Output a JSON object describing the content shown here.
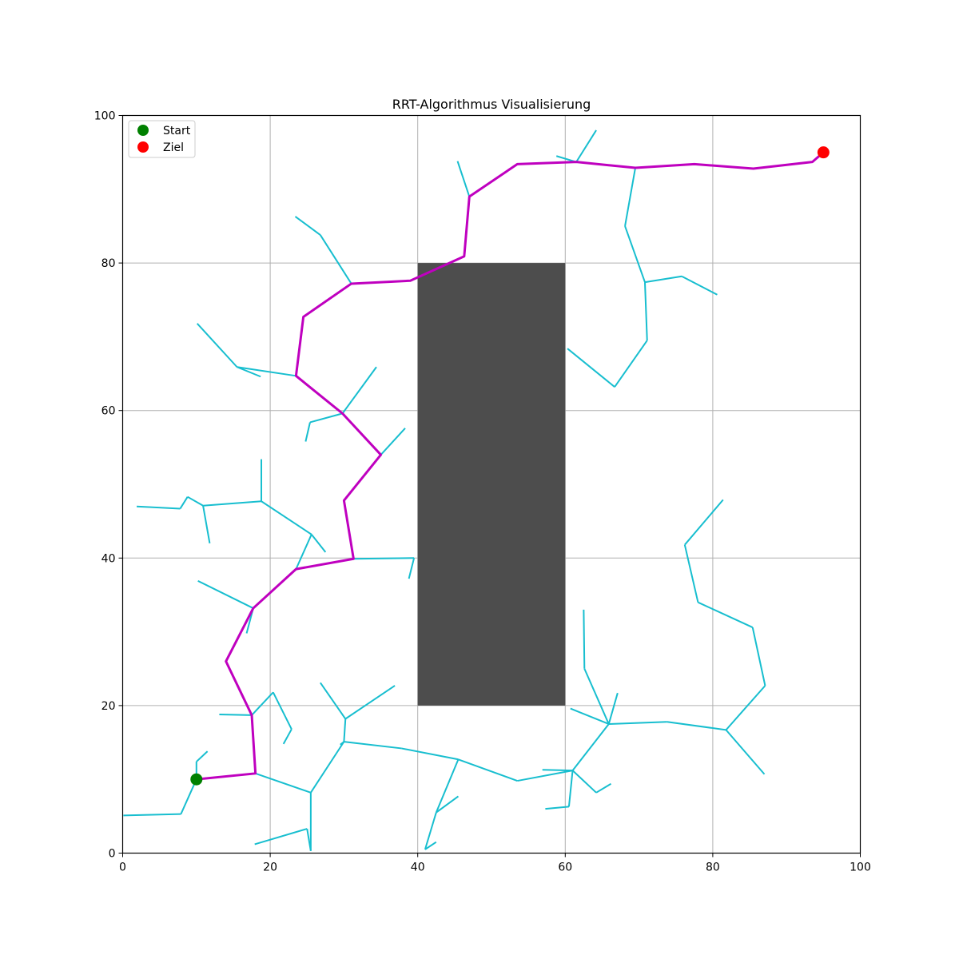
{
  "chart_data": {
    "type": "line",
    "title": "RRT-Algorithmus Visualisierung",
    "xlabel": "",
    "ylabel": "",
    "xlim": [
      0,
      100
    ],
    "ylim": [
      0,
      100
    ],
    "xticks": [
      0,
      20,
      40,
      60,
      80,
      100
    ],
    "yticks": [
      0,
      20,
      40,
      60,
      80,
      100
    ],
    "grid": true,
    "legend_position": "top-left",
    "colors": {
      "tree": "#17becf",
      "path": "#bf00bf",
      "obstacle": "#4d4d4d",
      "start": "#008000",
      "goal": "#ff0000",
      "grid": "#b0b0b0"
    },
    "obstacle": {
      "x": [
        40,
        60
      ],
      "y": [
        20,
        80
      ]
    },
    "start": {
      "name": "Start",
      "x": 10,
      "y": 10
    },
    "goal": {
      "name": "Ziel",
      "x": 95,
      "y": 95
    },
    "legend": [
      {
        "label": "Start",
        "color": "#008000"
      },
      {
        "label": "Ziel",
        "color": "#ff0000"
      }
    ],
    "path": [
      [
        10,
        10
      ],
      [
        18,
        10.8
      ],
      [
        17.5,
        18.7
      ],
      [
        14,
        26
      ],
      [
        17.7,
        33.2
      ],
      [
        23.5,
        38.5
      ],
      [
        31.3,
        39.9
      ],
      [
        30,
        47.8
      ],
      [
        35,
        54
      ],
      [
        29.8,
        59.6
      ],
      [
        23.5,
        64.7
      ],
      [
        24.5,
        72.7
      ],
      [
        31,
        77.2
      ],
      [
        39,
        77.6
      ],
      [
        46.3,
        80.9
      ],
      [
        47,
        89
      ],
      [
        53.5,
        93.4
      ],
      [
        61.5,
        93.7
      ],
      [
        69.5,
        92.9
      ],
      [
        77.5,
        93.4
      ],
      [
        85.5,
        92.8
      ],
      [
        93.5,
        93.7
      ],
      [
        95,
        95
      ]
    ],
    "tree_edges": [
      [
        [
          10,
          10
        ],
        [
          7.9,
          5.3
        ]
      ],
      [
        [
          7.9,
          5.3
        ],
        [
          0.1,
          5.1
        ]
      ],
      [
        [
          10,
          10
        ],
        [
          10,
          12.4
        ]
      ],
      [
        [
          10,
          12.4
        ],
        [
          11.5,
          13.8
        ]
      ],
      [
        [
          18,
          10.8
        ],
        [
          25.5,
          8.2
        ]
      ],
      [
        [
          25.5,
          8.2
        ],
        [
          25.5,
          0.3
        ]
      ],
      [
        [
          25.5,
          0.3
        ],
        [
          25,
          3.3
        ]
      ],
      [
        [
          25,
          3.3
        ],
        [
          17.9,
          1.2
        ]
      ],
      [
        [
          25.5,
          8.2
        ],
        [
          30,
          15.1
        ]
      ],
      [
        [
          30,
          15.1
        ],
        [
          29.5,
          14.7
        ]
      ],
      [
        [
          30,
          15.1
        ],
        [
          30.2,
          18.2
        ]
      ],
      [
        [
          30.2,
          18.2
        ],
        [
          26.8,
          23.1
        ]
      ],
      [
        [
          30.2,
          18.2
        ],
        [
          36.9,
          22.7
        ]
      ],
      [
        [
          30,
          15.1
        ],
        [
          37.8,
          14.2
        ]
      ],
      [
        [
          37.8,
          14.2
        ],
        [
          45.5,
          12.7
        ]
      ],
      [
        [
          45.5,
          12.7
        ],
        [
          42.5,
          5.5
        ]
      ],
      [
        [
          42.5,
          5.5
        ],
        [
          41,
          0.5
        ]
      ],
      [
        [
          41,
          0.5
        ],
        [
          42.5,
          1.5
        ]
      ],
      [
        [
          42.5,
          5.5
        ],
        [
          45.5,
          7.7
        ]
      ],
      [
        [
          45.5,
          12.7
        ],
        [
          53.5,
          9.8
        ]
      ],
      [
        [
          53.5,
          9.8
        ],
        [
          61,
          11.2
        ]
      ],
      [
        [
          61,
          11.2
        ],
        [
          56.9,
          11.3
        ]
      ],
      [
        [
          61,
          11.2
        ],
        [
          60.5,
          6.3
        ]
      ],
      [
        [
          60.5,
          6.3
        ],
        [
          57.3,
          6
        ]
      ],
      [
        [
          61,
          11.2
        ],
        [
          64.2,
          8.2
        ]
      ],
      [
        [
          64.2,
          8.2
        ],
        [
          66.2,
          9.4
        ]
      ],
      [
        [
          61,
          11.2
        ],
        [
          65.9,
          17.5
        ]
      ],
      [
        [
          65.9,
          17.5
        ],
        [
          60.7,
          19.6
        ]
      ],
      [
        [
          65.9,
          17.5
        ],
        [
          62.6,
          25
        ]
      ],
      [
        [
          62.6,
          25
        ],
        [
          62.5,
          33
        ]
      ],
      [
        [
          65.9,
          17.5
        ],
        [
          67.1,
          21.7
        ]
      ],
      [
        [
          65.9,
          17.5
        ],
        [
          73.8,
          17.8
        ]
      ],
      [
        [
          73.8,
          17.8
        ],
        [
          81.8,
          16.7
        ]
      ],
      [
        [
          81.8,
          16.7
        ],
        [
          87,
          10.7
        ]
      ],
      [
        [
          81.8,
          16.7
        ],
        [
          87.1,
          22.7
        ]
      ],
      [
        [
          87.1,
          22.7
        ],
        [
          85.4,
          30.6
        ]
      ],
      [
        [
          85.4,
          30.6
        ],
        [
          78,
          34
        ]
      ],
      [
        [
          78,
          34
        ],
        [
          76.2,
          41.8
        ]
      ],
      [
        [
          76.2,
          41.8
        ],
        [
          81.4,
          47.9
        ]
      ],
      [
        [
          17.5,
          18.7
        ],
        [
          13.1,
          18.8
        ]
      ],
      [
        [
          17.5,
          18.7
        ],
        [
          20.4,
          21.8
        ]
      ],
      [
        [
          20.4,
          21.8
        ],
        [
          22.9,
          16.8
        ]
      ],
      [
        [
          22.9,
          16.8
        ],
        [
          21.8,
          14.8
        ]
      ],
      [
        [
          17.7,
          33.2
        ],
        [
          10.2,
          36.9
        ]
      ],
      [
        [
          17.7,
          33.2
        ],
        [
          16.8,
          29.8
        ]
      ],
      [
        [
          23.5,
          38.5
        ],
        [
          25.6,
          43.2
        ]
      ],
      [
        [
          25.6,
          43.2
        ],
        [
          27.5,
          40.8
        ]
      ],
      [
        [
          25.6,
          43.2
        ],
        [
          18.8,
          47.7
        ]
      ],
      [
        [
          18.8,
          47.7
        ],
        [
          18.8,
          53.4
        ]
      ],
      [
        [
          18.8,
          47.7
        ],
        [
          10.9,
          47.1
        ]
      ],
      [
        [
          10.9,
          47.1
        ],
        [
          11.8,
          42
        ]
      ],
      [
        [
          10.9,
          47.1
        ],
        [
          8.8,
          48.3
        ]
      ],
      [
        [
          8.8,
          48.3
        ],
        [
          7.8,
          46.7
        ]
      ],
      [
        [
          7.8,
          46.7
        ],
        [
          1.9,
          47
        ]
      ],
      [
        [
          31.3,
          39.9
        ],
        [
          39.5,
          40
        ]
      ],
      [
        [
          39.5,
          40
        ],
        [
          38.8,
          37.2
        ]
      ],
      [
        [
          35,
          54
        ],
        [
          38.3,
          57.6
        ]
      ],
      [
        [
          29.8,
          59.6
        ],
        [
          34.4,
          65.9
        ]
      ],
      [
        [
          29.8,
          59.6
        ],
        [
          25.4,
          58.4
        ]
      ],
      [
        [
          25.4,
          58.4
        ],
        [
          24.8,
          55.8
        ]
      ],
      [
        [
          23.5,
          64.7
        ],
        [
          15.5,
          65.9
        ]
      ],
      [
        [
          15.5,
          65.9
        ],
        [
          18.7,
          64.6
        ]
      ],
      [
        [
          15.5,
          65.9
        ],
        [
          10.1,
          71.8
        ]
      ],
      [
        [
          31,
          77.2
        ],
        [
          26.8,
          83.8
        ]
      ],
      [
        [
          26.8,
          83.8
        ],
        [
          23.4,
          86.3
        ]
      ],
      [
        [
          47,
          89
        ],
        [
          45.4,
          93.8
        ]
      ],
      [
        [
          61.5,
          93.7
        ],
        [
          58.8,
          94.5
        ]
      ],
      [
        [
          61.5,
          93.7
        ],
        [
          64.2,
          98
        ]
      ],
      [
        [
          69.5,
          92.9
        ],
        [
          68.1,
          85
        ]
      ],
      [
        [
          68.1,
          85
        ],
        [
          70.8,
          77.4
        ]
      ],
      [
        [
          70.8,
          77.4
        ],
        [
          75.8,
          78.2
        ]
      ],
      [
        [
          75.8,
          78.2
        ],
        [
          80.6,
          75.7
        ]
      ],
      [
        [
          70.8,
          77.4
        ],
        [
          71.1,
          69.5
        ]
      ],
      [
        [
          71.1,
          69.5
        ],
        [
          66.7,
          63.2
        ]
      ],
      [
        [
          66.7,
          63.2
        ],
        [
          60.3,
          68.4
        ]
      ]
    ]
  }
}
